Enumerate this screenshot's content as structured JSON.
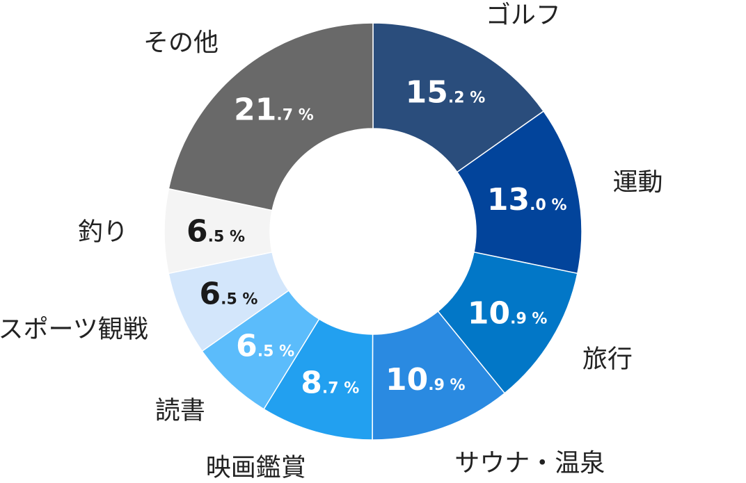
{
  "chart_data": {
    "type": "pie",
    "subtype": "donut",
    "categories": [
      "ゴルフ",
      "運動",
      "旅行",
      "サウナ・温泉",
      "映画鑑賞",
      "読書",
      "スポーツ観戦",
      "釣り",
      "その他"
    ],
    "values": [
      15.2,
      13.0,
      10.9,
      10.9,
      8.7,
      6.5,
      6.5,
      6.5,
      21.7
    ],
    "value_labels": [
      {
        "int": "15",
        "dec": ".2",
        "unit": "%"
      },
      {
        "int": "13",
        "dec": ".0",
        "unit": "%"
      },
      {
        "int": "10",
        "dec": ".9",
        "unit": "%"
      },
      {
        "int": "10",
        "dec": ".9",
        "unit": "%"
      },
      {
        "int": "8",
        "dec": ".7",
        "unit": "%"
      },
      {
        "int": "6",
        "dec": ".5",
        "unit": "%"
      },
      {
        "int": "6",
        "dec": ".5",
        "unit": "%"
      },
      {
        "int": "6",
        "dec": ".5",
        "unit": "%"
      },
      {
        "int": "21",
        "dec": ".7",
        "unit": "%"
      }
    ],
    "colors": [
      "#2a4d7c",
      "#02449b",
      "#0277c7",
      "#2a8ae1",
      "#22a0f0",
      "#5bbcfb",
      "#d3e6fb",
      "#f4f4f4",
      "#696969"
    ],
    "value_label_colors": [
      "#ffffff",
      "#ffffff",
      "#ffffff",
      "#ffffff",
      "#ffffff",
      "#ffffff",
      "#1a1a1a",
      "#1a1a1a",
      "#ffffff"
    ],
    "label_color": "#222222",
    "start": "12 o'clock",
    "direction": "clockwise"
  }
}
